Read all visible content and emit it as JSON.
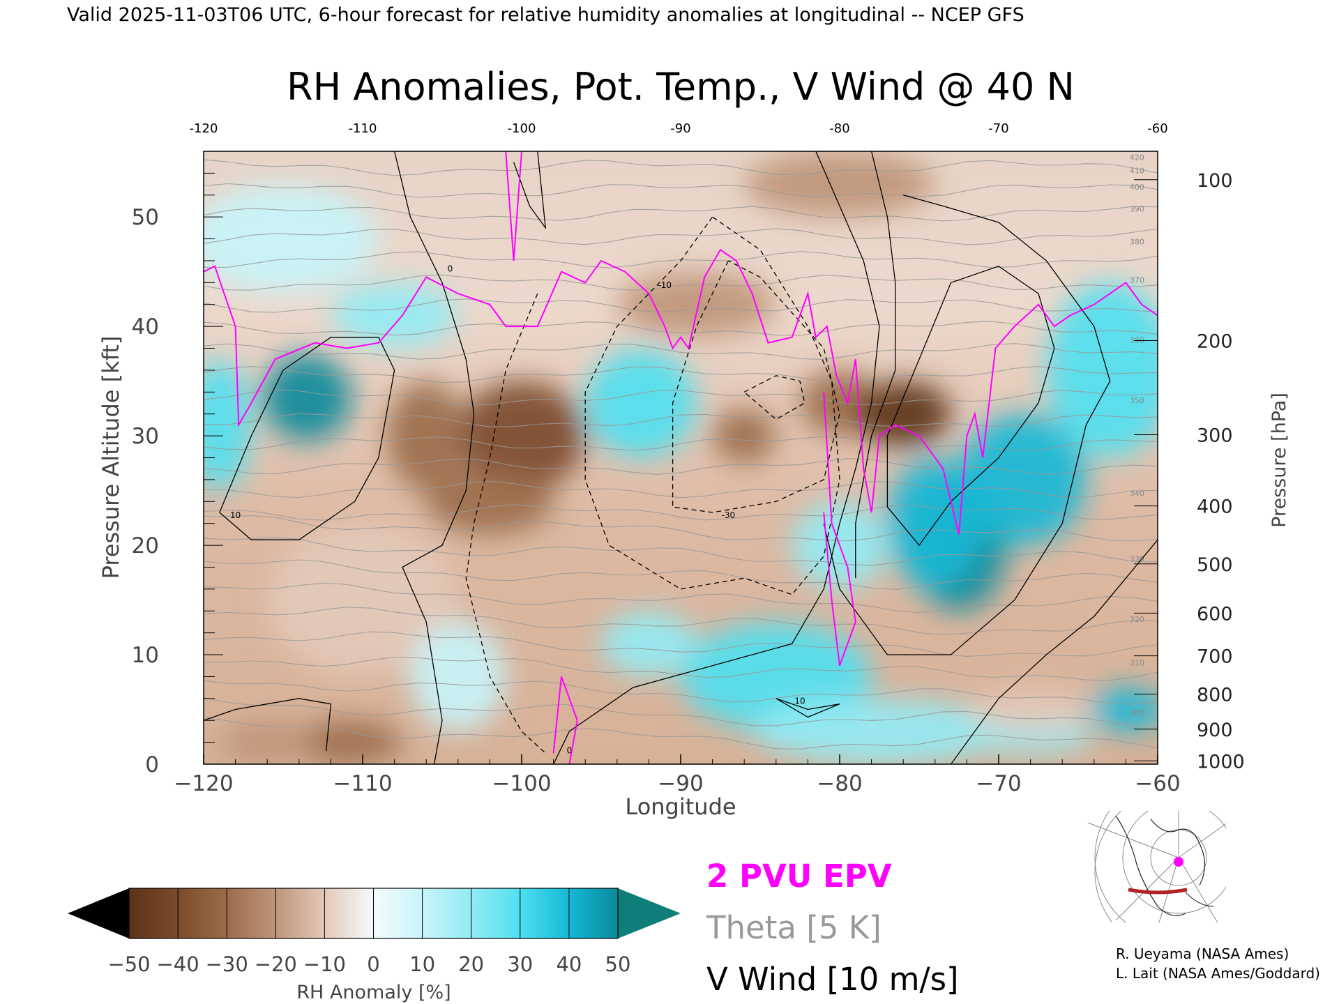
{
  "header": {
    "valid_line": "Valid 2025-11-03T06 UTC, 6-hour forecast for relative humidity anomalies at longitudinal -- NCEP GFS"
  },
  "chart_data": {
    "type": "heatmap",
    "title": "RH Anomalies, Pot. Temp., V Wind @ 40 N",
    "xlabel": "Longitude",
    "ylabel_left": "Pressure Altitude [kft]",
    "ylabel_right": "Pressure [hPa]",
    "xlim": [
      -120,
      -60
    ],
    "ylim": [
      0,
      56
    ],
    "x_ticks": [
      -120,
      -110,
      -100,
      -90,
      -80,
      -70,
      -60
    ],
    "x_tick_labels": [
      "−120",
      "−110",
      "−100",
      "−90",
      "−80",
      "−70",
      "−60"
    ],
    "top_tick_labels": [
      "-120",
      "-110",
      "-100",
      "-90",
      "-80",
      "-70",
      "-60"
    ],
    "y_ticks": [
      0,
      10,
      20,
      30,
      40,
      50
    ],
    "y_tick_labels": [
      "0",
      "10",
      "20",
      "30",
      "40",
      "50"
    ],
    "pressure_ticks": [
      {
        "label": "100",
        "kft": 53.4
      },
      {
        "label": "200",
        "kft": 38.7
      },
      {
        "label": "300",
        "kft": 30.1
      },
      {
        "label": "400",
        "kft": 23.6
      },
      {
        "label": "500",
        "kft": 18.3
      },
      {
        "label": "600",
        "kft": 13.8
      },
      {
        "label": "700",
        "kft": 9.9
      },
      {
        "label": "800",
        "kft": 6.4
      },
      {
        "label": "900",
        "kft": 3.2
      },
      {
        "label": "1000",
        "kft": 0.3
      }
    ],
    "grid": false,
    "rh_anomaly_blobs": [
      {
        "lon": -113.5,
        "kft": 33.5,
        "value": 45,
        "wlon": 2.8,
        "hkft": 4
      },
      {
        "lon": -119,
        "kft": 31,
        "value": 25,
        "wlon": 2,
        "hkft": 6
      },
      {
        "lon": -108,
        "kft": 41,
        "value": 15,
        "wlon": 4,
        "hkft": 3
      },
      {
        "lon": -100,
        "kft": 30,
        "value": -40,
        "wlon": 4,
        "hkft": 5
      },
      {
        "lon": -106,
        "kft": 30,
        "value": -32,
        "wlon": 2.5,
        "hkft": 5
      },
      {
        "lon": -102,
        "kft": 24,
        "value": -30,
        "wlon": 4,
        "hkft": 3
      },
      {
        "lon": -92.5,
        "kft": 33,
        "value": 25,
        "wlon": 3.5,
        "hkft": 5
      },
      {
        "lon": -86,
        "kft": 30,
        "value": -33,
        "wlon": 2,
        "hkft": 2.5
      },
      {
        "lon": -89,
        "kft": 42,
        "value": -20,
        "wlon": 5,
        "hkft": 3
      },
      {
        "lon": -80,
        "kft": 33,
        "value": -35,
        "wlon": 2.5,
        "hkft": 3
      },
      {
        "lon": -76,
        "kft": 32,
        "value": -48,
        "wlon": 3,
        "hkft": 3
      },
      {
        "lon": -72.5,
        "kft": 20,
        "value": 52,
        "wlon": 3,
        "hkft": 6
      },
      {
        "lon": -74,
        "kft": 22,
        "value": 40,
        "wlon": 3,
        "hkft": 6
      },
      {
        "lon": -68.5,
        "kft": 26,
        "value": 40,
        "wlon": 4,
        "hkft": 6
      },
      {
        "lon": -63,
        "kft": 36,
        "value": 25,
        "wlon": 4,
        "hkft": 8
      },
      {
        "lon": -84,
        "kft": 8,
        "value": 25,
        "wlon": 6,
        "hkft": 5
      },
      {
        "lon": -92,
        "kft": 11,
        "value": 18,
        "wlon": 3,
        "hkft": 3
      },
      {
        "lon": -80,
        "kft": 20,
        "value": 18,
        "wlon": 3,
        "hkft": 4
      },
      {
        "lon": -62,
        "kft": 5,
        "value": 42,
        "wlon": 2.5,
        "hkft": 2
      },
      {
        "lon": -68,
        "kft": 2.5,
        "value": 22,
        "wlon": 4,
        "hkft": 1.5
      },
      {
        "lon": -77.5,
        "kft": 3,
        "value": 20,
        "wlon": 8,
        "hkft": 3
      },
      {
        "lon": -111,
        "kft": 2,
        "value": -28,
        "wlon": 3.5,
        "hkft": 2
      },
      {
        "lon": -116,
        "kft": 2,
        "value": -22,
        "wlon": 3,
        "hkft": 2
      },
      {
        "lon": -110,
        "kft": 15,
        "value": -12,
        "wlon": 6,
        "hkft": 7
      },
      {
        "lon": -104,
        "kft": 8,
        "value": 8,
        "wlon": 3,
        "hkft": 5
      },
      {
        "lon": -68,
        "kft": 5,
        "value": -15,
        "wlon": 4,
        "hkft": 2
      },
      {
        "lon": -80,
        "kft": 53,
        "value": -18,
        "wlon": 6,
        "hkft": 3
      },
      {
        "lon": -115,
        "kft": 48,
        "value": 12,
        "wlon": 6,
        "hkft": 5
      }
    ],
    "pv2_contour": [
      [
        -120,
        45
      ],
      [
        -119.3,
        45.5
      ],
      [
        -118,
        40
      ],
      [
        -117.8,
        31
      ],
      [
        -117,
        33
      ],
      [
        -115.5,
        37
      ],
      [
        -113,
        38.5
      ],
      [
        -111,
        38
      ],
      [
        -109,
        38.5
      ],
      [
        -107.5,
        41
      ],
      [
        -106,
        44.5
      ],
      [
        -104,
        43
      ],
      [
        -102,
        42
      ],
      [
        -101,
        40
      ],
      [
        -99,
        40
      ],
      [
        -97.5,
        45
      ],
      [
        -96,
        44
      ],
      [
        -95,
        46
      ],
      [
        -93.5,
        45
      ],
      [
        -92,
        43
      ],
      [
        -91,
        40
      ],
      [
        -90.5,
        38
      ],
      [
        -90,
        39
      ],
      [
        -89.5,
        38
      ],
      [
        -88.5,
        44.5
      ],
      [
        -87.5,
        47
      ],
      [
        -86.5,
        46
      ],
      [
        -85.5,
        43
      ],
      [
        -84.5,
        38.5
      ],
      [
        -83,
        39
      ],
      [
        -82,
        43
      ],
      [
        -81.5,
        39
      ],
      [
        -80.8,
        40
      ],
      [
        -80.2,
        35.5
      ],
      [
        -79.5,
        33
      ],
      [
        -79,
        37
      ],
      [
        -78.5,
        27
      ],
      [
        -78,
        23
      ],
      [
        -77.5,
        30
      ],
      [
        -76.5,
        31
      ],
      [
        -75,
        30
      ],
      [
        -73.5,
        27
      ],
      [
        -72.5,
        21
      ],
      [
        -72,
        30
      ],
      [
        -71.5,
        32
      ],
      [
        -71,
        28
      ],
      [
        -70.2,
        38
      ],
      [
        -69,
        40
      ],
      [
        -67.5,
        42
      ],
      [
        -66.5,
        40
      ],
      [
        -65.5,
        41
      ],
      [
        -64,
        42
      ],
      [
        -62,
        44
      ],
      [
        -61,
        42
      ],
      [
        -60,
        41
      ]
    ],
    "theta_label_values": [
      "300",
      "310",
      "320",
      "330",
      "340",
      "350",
      "360",
      "370",
      "380",
      "390",
      "400",
      "410",
      "420"
    ],
    "vwind_contour_labels": [
      "10",
      "0",
      "-10",
      "-30"
    ],
    "colorbar": {
      "label": "RH Anomaly [%]",
      "tick_labels": [
        "−50",
        "−40",
        "−30",
        "−20",
        "−10",
        "0",
        "10",
        "20",
        "30",
        "40",
        "50"
      ],
      "colors": [
        "#402000",
        "#5c3318",
        "#7b4b2a",
        "#9b6c4a",
        "#bf957a",
        "#e3c9b8",
        "#f5fbfd",
        "#c8f4fa",
        "#93ebf4",
        "#50dff0",
        "#14b9d6",
        "#0a8a9b",
        "#0f7e78"
      ]
    }
  },
  "legend": {
    "pv_label": "2 PVU EPV",
    "theta_label": "Theta [5 K]",
    "vwind_label": "V Wind [10 m/s]",
    "pv_color": "#ff00ff",
    "theta_color": "#999999"
  },
  "credits": {
    "line1": "R. Ueyama (NASA Ames)",
    "line2": "L. Lait (NASA Ames/Goddard)"
  }
}
